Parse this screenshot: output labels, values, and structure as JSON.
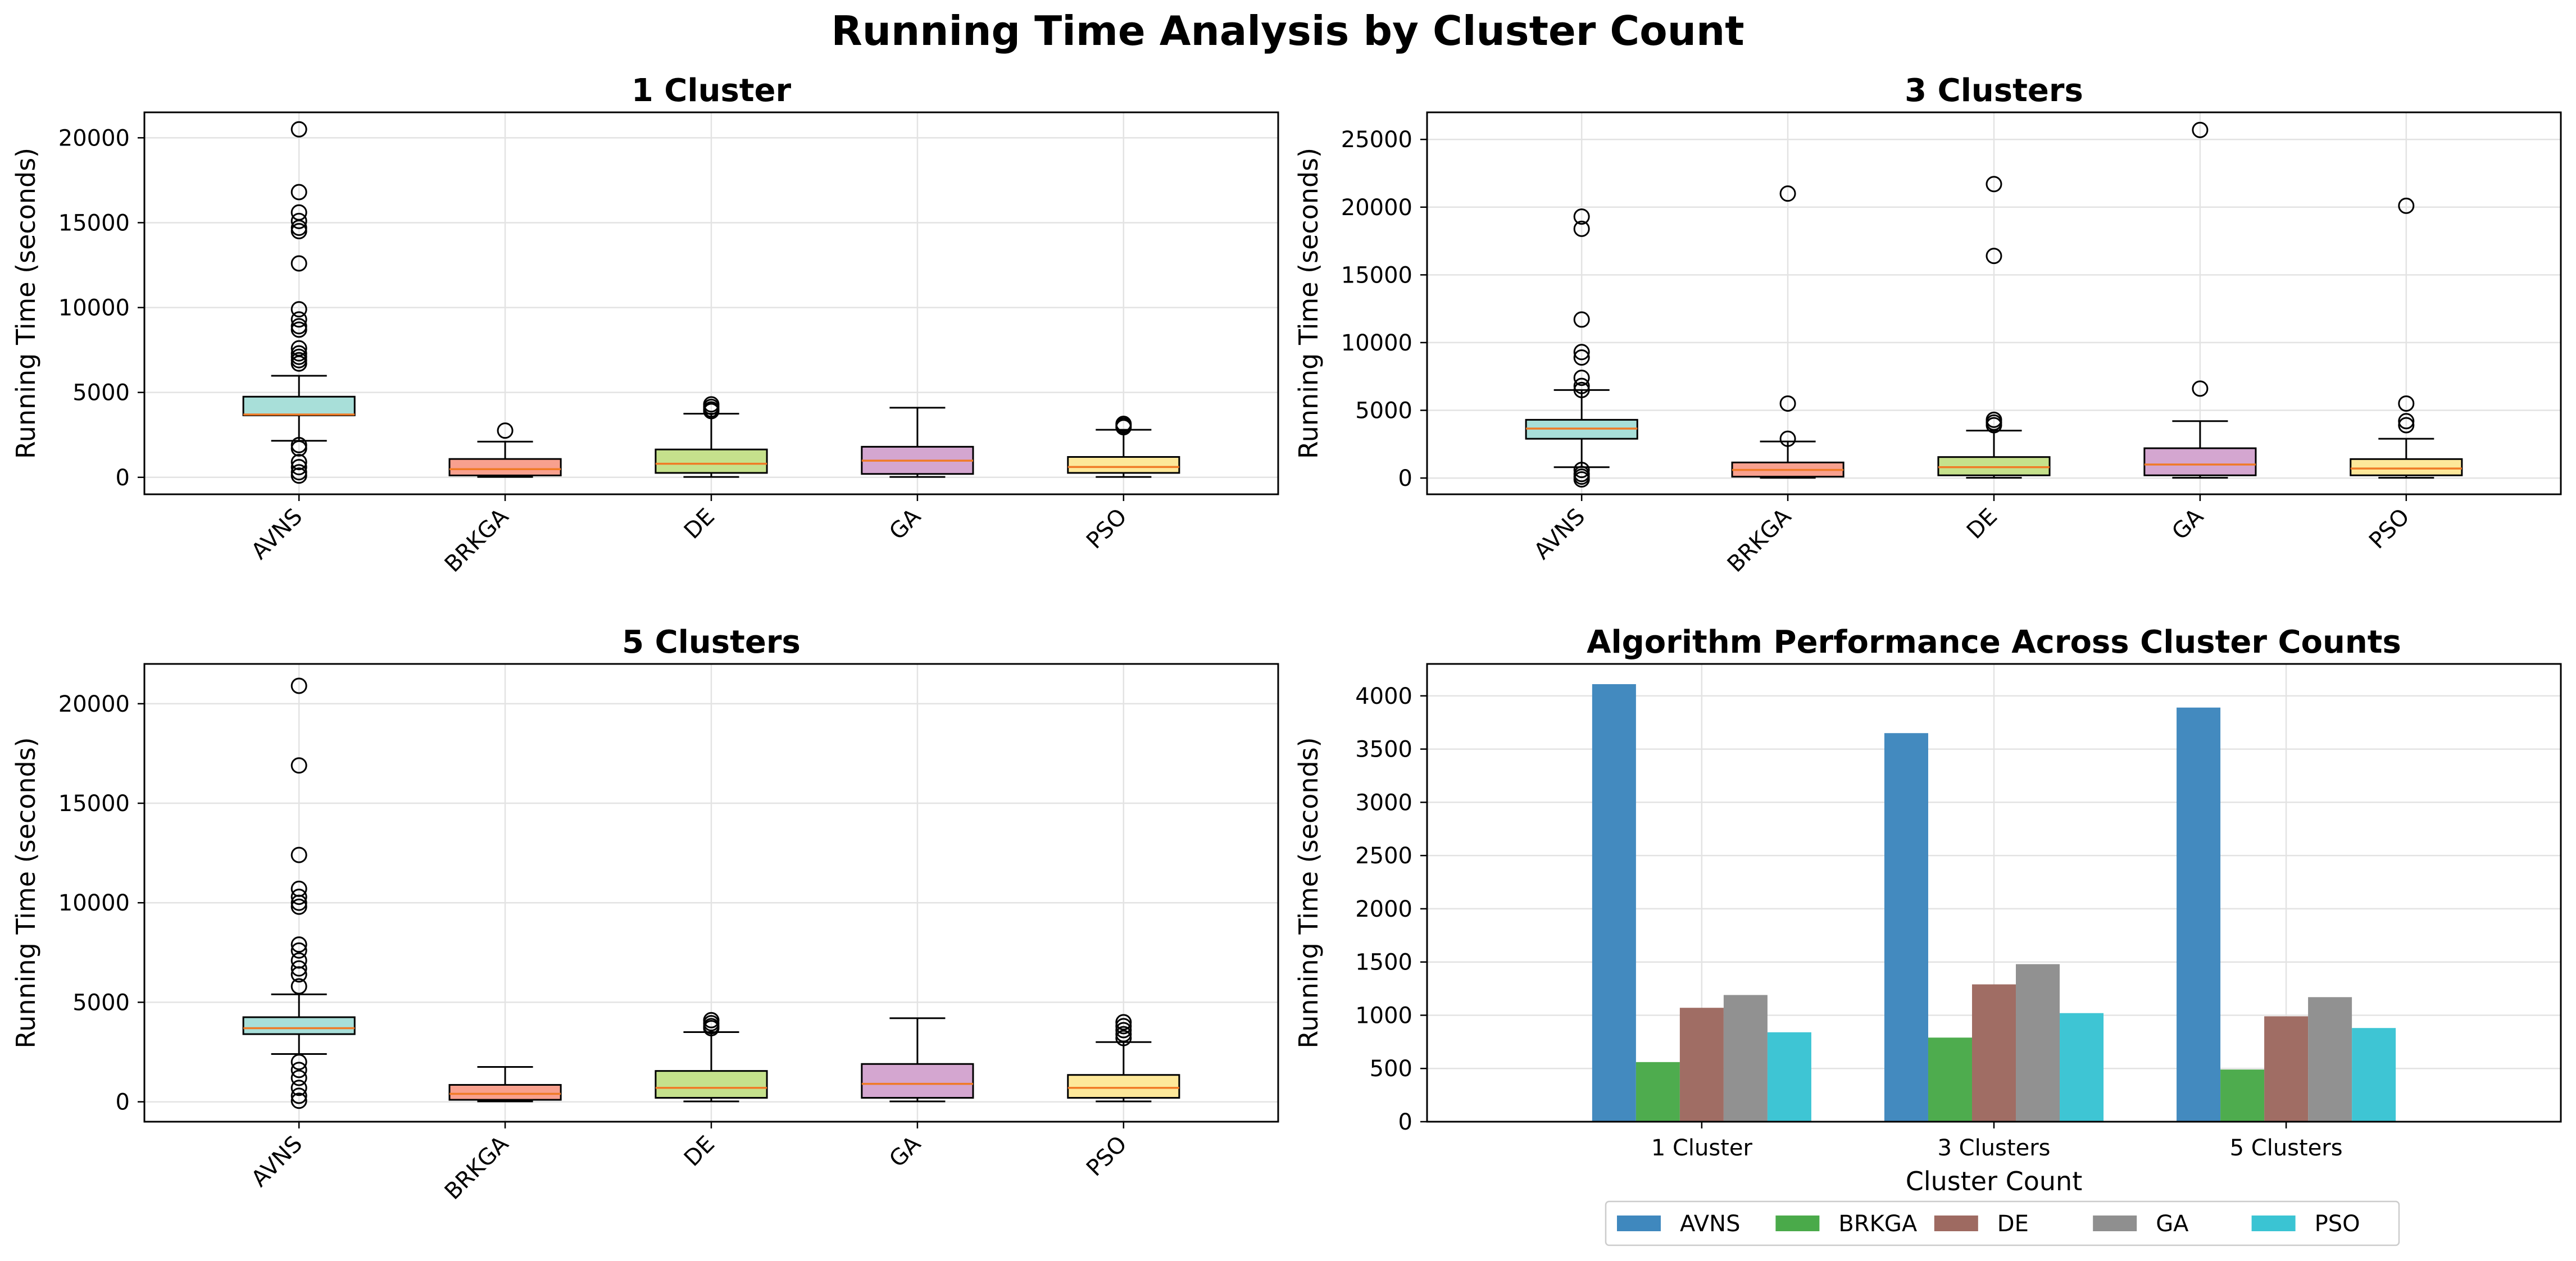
{
  "figure": {
    "title": "Running Time Analysis by Cluster Count"
  },
  "chart_data": [
    {
      "type": "box",
      "title": "1 Cluster",
      "ylabel": "Running Time (seconds)",
      "categories": [
        "AVNS",
        "BRKGA",
        "DE",
        "GA",
        "PSO"
      ],
      "ylim": [
        -1000,
        21500
      ],
      "yticks": [
        0,
        5000,
        10000,
        15000,
        20000
      ],
      "grid": true,
      "boxes": [
        {
          "name": "AVNS",
          "color": "#a8dfd9",
          "whislo": 2150,
          "q1": 3650,
          "median": 3700,
          "q3": 4750,
          "whishi": 5980,
          "fliers": [
            20500,
            16800,
            15600,
            15100,
            14700,
            14500,
            12600,
            9900,
            9300,
            8900,
            8700,
            7600,
            7300,
            7100,
            6900,
            6700,
            1900,
            1700,
            900,
            600,
            300,
            100
          ]
        },
        {
          "name": "BRKGA",
          "color": "#f8a08e",
          "whislo": 20,
          "q1": 110,
          "median": 480,
          "q3": 1080,
          "whishi": 2100,
          "fliers": [
            2750
          ]
        },
        {
          "name": "DE",
          "color": "#c5e18c",
          "whislo": 20,
          "q1": 260,
          "median": 800,
          "q3": 1640,
          "whishi": 3750,
          "fliers": [
            4300,
            4150,
            4000,
            3900
          ]
        },
        {
          "name": "GA",
          "color": "#d4a6d0",
          "whislo": 20,
          "q1": 200,
          "median": 980,
          "q3": 1800,
          "whishi": 4100,
          "fliers": []
        },
        {
          "name": "PSO",
          "color": "#fde89a",
          "whislo": 20,
          "q1": 260,
          "median": 610,
          "q3": 1200,
          "whishi": 2800,
          "fliers": [
            3150,
            3050,
            2950
          ]
        }
      ]
    },
    {
      "type": "box",
      "title": "3 Clusters",
      "ylabel": "Running Time (seconds)",
      "categories": [
        "AVNS",
        "BRKGA",
        "DE",
        "GA",
        "PSO"
      ],
      "ylim": [
        -1200,
        27000
      ],
      "yticks": [
        0,
        5000,
        10000,
        15000,
        20000,
        25000
      ],
      "grid": true,
      "boxes": [
        {
          "name": "AVNS",
          "color": "#a8dfd9",
          "whislo": 800,
          "q1": 2900,
          "median": 3650,
          "q3": 4300,
          "whishi": 6500,
          "fliers": [
            19300,
            18400,
            11700,
            9300,
            8900,
            7400,
            6800,
            6500,
            600,
            300,
            100,
            -100
          ]
        },
        {
          "name": "BRKGA",
          "color": "#f8a08e",
          "whislo": 20,
          "q1": 100,
          "median": 600,
          "q3": 1150,
          "whishi": 2700,
          "fliers": [
            21000,
            5500,
            2900
          ]
        },
        {
          "name": "DE",
          "color": "#c5e18c",
          "whislo": 20,
          "q1": 200,
          "median": 800,
          "q3": 1550,
          "whishi": 3500,
          "fliers": [
            21700,
            16400,
            4300,
            4100,
            3900
          ]
        },
        {
          "name": "GA",
          "color": "#d4a6d0",
          "whislo": 20,
          "q1": 200,
          "median": 1000,
          "q3": 2200,
          "whishi": 4200,
          "fliers": [
            25700,
            6600
          ]
        },
        {
          "name": "PSO",
          "color": "#fde89a",
          "whislo": 20,
          "q1": 200,
          "median": 700,
          "q3": 1400,
          "whishi": 2900,
          "fliers": [
            20100,
            5500,
            4200,
            3900
          ]
        }
      ]
    },
    {
      "type": "box",
      "title": "5 Clusters",
      "ylabel": "Running Time (seconds)",
      "categories": [
        "AVNS",
        "BRKGA",
        "DE",
        "GA",
        "PSO"
      ],
      "ylim": [
        -1000,
        22000
      ],
      "yticks": [
        0,
        5000,
        10000,
        15000,
        20000
      ],
      "grid": true,
      "boxes": [
        {
          "name": "AVNS",
          "color": "#a8dfd9",
          "whislo": 2400,
          "q1": 3400,
          "median": 3700,
          "q3": 4250,
          "whishi": 5400,
          "fliers": [
            20900,
            16900,
            12400,
            10700,
            10300,
            10000,
            9800,
            7900,
            7600,
            7100,
            6700,
            6400,
            5800,
            2000,
            1600,
            1200,
            700,
            300,
            50
          ]
        },
        {
          "name": "BRKGA",
          "color": "#f8a08e",
          "whislo": 20,
          "q1": 100,
          "median": 400,
          "q3": 850,
          "whishi": 1750,
          "fliers": []
        },
        {
          "name": "DE",
          "color": "#c5e18c",
          "whislo": 20,
          "q1": 200,
          "median": 700,
          "q3": 1550,
          "whishi": 3500,
          "fliers": [
            4100,
            3950,
            3800,
            3700
          ]
        },
        {
          "name": "GA",
          "color": "#d4a6d0",
          "whislo": 20,
          "q1": 200,
          "median": 900,
          "q3": 1900,
          "whishi": 4200,
          "fliers": []
        },
        {
          "name": "PSO",
          "color": "#fde89a",
          "whislo": 20,
          "q1": 200,
          "median": 700,
          "q3": 1350,
          "whishi": 3000,
          "fliers": [
            4000,
            3800,
            3600,
            3400,
            3200
          ]
        }
      ]
    },
    {
      "type": "bar",
      "title": "Algorithm Performance Across Cluster Counts",
      "xlabel": "Cluster Count",
      "ylabel": "Running Time (seconds)",
      "categories": [
        "1 Cluster",
        "3 Clusters",
        "5 Clusters"
      ],
      "ylim": [
        0,
        4300
      ],
      "yticks": [
        0,
        500,
        1000,
        1500,
        2000,
        2500,
        3000,
        3500,
        4000
      ],
      "grid": true,
      "legend": "bottom-center",
      "series": [
        {
          "name": "AVNS",
          "color": "#3f88be",
          "values": [
            4110,
            3650,
            3890
          ]
        },
        {
          "name": "BRKGA",
          "color": "#4aaa4a",
          "values": [
            560,
            790,
            490
          ]
        },
        {
          "name": "DE",
          "color": "#9e6a61",
          "values": [
            1070,
            1290,
            990
          ]
        },
        {
          "name": "GA",
          "color": "#8f8f8f",
          "values": [
            1190,
            1480,
            1170
          ]
        },
        {
          "name": "PSO",
          "color": "#3ac4d3",
          "values": [
            840,
            1020,
            880
          ]
        }
      ]
    }
  ]
}
